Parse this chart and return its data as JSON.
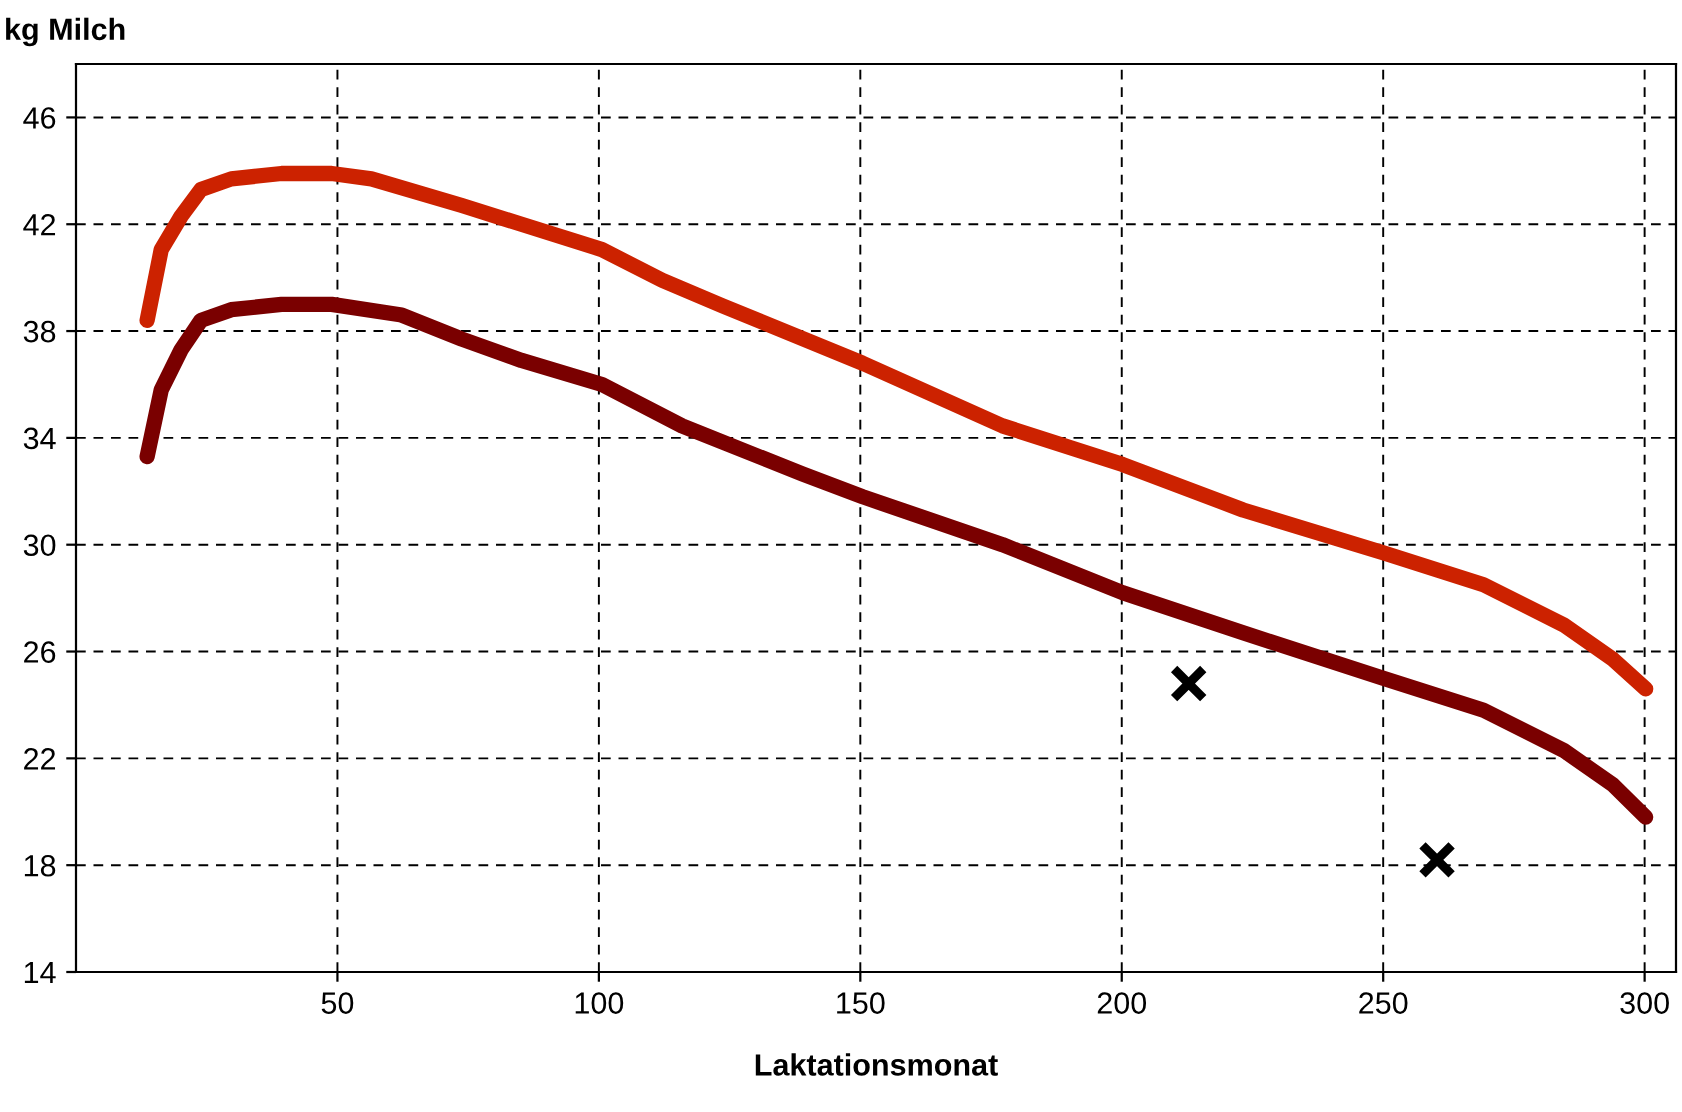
{
  "chart_data": {
    "type": "line",
    "xlabel": "Laktationsmonat",
    "ylabel": "kg Milch",
    "series": [
      {
        "color": "#cc2200",
        "x": [
          13.6,
          16.3,
          20.1,
          23.9,
          29.7,
          39.3,
          48.9,
          56.5,
          73.8,
          85.2,
          100.6,
          112.1,
          123.6,
          150.4,
          177.2,
          200.2,
          223.2,
          250,
          269.2,
          284.5,
          294,
          300.2
        ],
        "values": [
          38.4,
          41.05,
          42.3,
          43.3,
          43.7,
          43.9,
          43.9,
          43.7,
          42.7,
          42,
          41.05,
          39.9,
          38.95,
          36.8,
          34.45,
          33.0,
          31.3,
          29.7,
          28.5,
          27.0,
          25.7,
          24.6
        ]
      },
      {
        "color": "#7a0000",
        "x": [
          13.6,
          16.3,
          20.1,
          23.9,
          29.7,
          39.3,
          48.9,
          62.3,
          73.8,
          85.2,
          100.6,
          115.9,
          138.9,
          150.4,
          177.2,
          200.2,
          223.2,
          250,
          269.2,
          284.5,
          294,
          300.2
        ],
        "values": [
          33.3,
          35.8,
          37.3,
          38.4,
          38.8,
          39.0,
          39.0,
          38.6,
          37.7,
          36.9,
          36.0,
          34.45,
          32.65,
          31.8,
          30.0,
          28.2,
          26.7,
          25.0,
          23.8,
          22.3,
          21.0,
          19.8
        ]
      },
      {
        "type": "scatter",
        "color": "#000000",
        "marker": "cross",
        "x": [
          212.8,
          260.3
        ],
        "values": [
          24.8,
          18.2
        ]
      }
    ],
    "xlim": [
      0,
      306
    ],
    "xticks": [
      50,
      100,
      150,
      200,
      250,
      300
    ],
    "ylim": [
      14,
      48
    ],
    "yticks": [
      14,
      18,
      22,
      26,
      30,
      34,
      38,
      42,
      46
    ],
    "grid": true,
    "line_style": "solid",
    "marker": "none"
  }
}
